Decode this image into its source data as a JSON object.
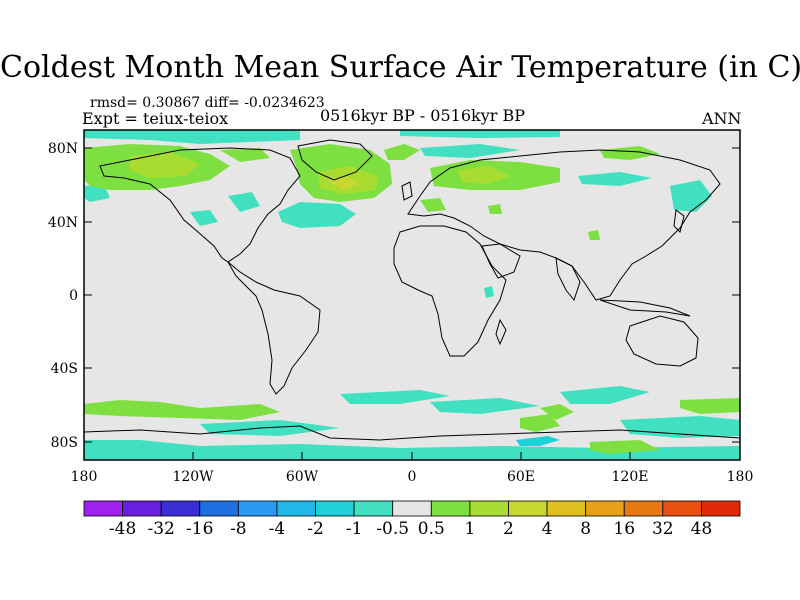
{
  "title": "Coldest Month Mean Surface Air Temperature (in C)",
  "stats_line": "rmsd= 0.30867 diff= -0.0234623",
  "expt_line": "Expt = teiux-teiox",
  "period_line": "0516kyr BP - 0516kyr BP",
  "season": "ANN",
  "axes": {
    "lat_ticks": [
      "80N",
      "40N",
      "0",
      "40S",
      "80S"
    ],
    "lon_ticks": [
      "180",
      "120W",
      "60W",
      "0",
      "60E",
      "120E",
      "180"
    ]
  },
  "colorbar": {
    "labels": [
      "-48",
      "-32",
      "-16",
      "-8",
      "-4",
      "-2",
      "-1",
      "-0.5",
      "0.5",
      "1",
      "2",
      "4",
      "8",
      "16",
      "32",
      "48"
    ],
    "colors": [
      "#a020f0",
      "#6a1fe0",
      "#3a2fd6",
      "#1f6fe0",
      "#2a9af0",
      "#21b8e8",
      "#20cfd8",
      "#40e0c0",
      "#e6e6e6",
      "#7ee040",
      "#a8dc30",
      "#c8d830",
      "#e0c020",
      "#e8a018",
      "#e87810",
      "#e85010",
      "#e02a08"
    ]
  },
  "colors": {
    "land_no_change": "#e6e6e6",
    "coast": "#000000"
  }
}
